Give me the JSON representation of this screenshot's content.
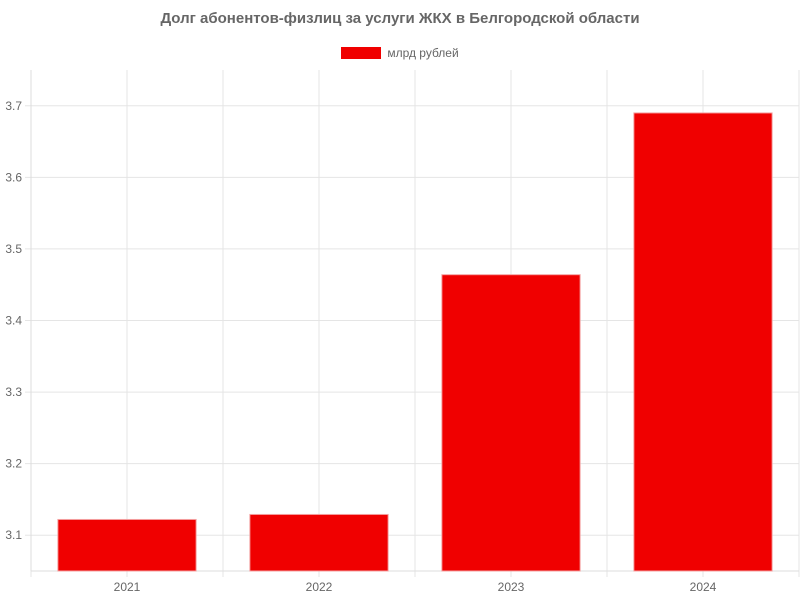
{
  "chart_data": {
    "type": "bar",
    "title": "Долг абонентов-физлиц за услуги ЖКХ в Белгородской области",
    "categories": [
      "2021",
      "2022",
      "2023",
      "2024"
    ],
    "series": [
      {
        "name": "млрд рублей",
        "values": [
          3.122,
          3.129,
          3.464,
          3.69
        ],
        "color": "#f00000"
      }
    ],
    "yticks": [
      "3.1",
      "3.2",
      "3.3",
      "3.4",
      "3.5",
      "3.6",
      "3.7"
    ],
    "ylim": [
      3.05,
      3.75
    ],
    "grid": true,
    "legend": "top-center",
    "xlabel": "",
    "ylabel": ""
  }
}
